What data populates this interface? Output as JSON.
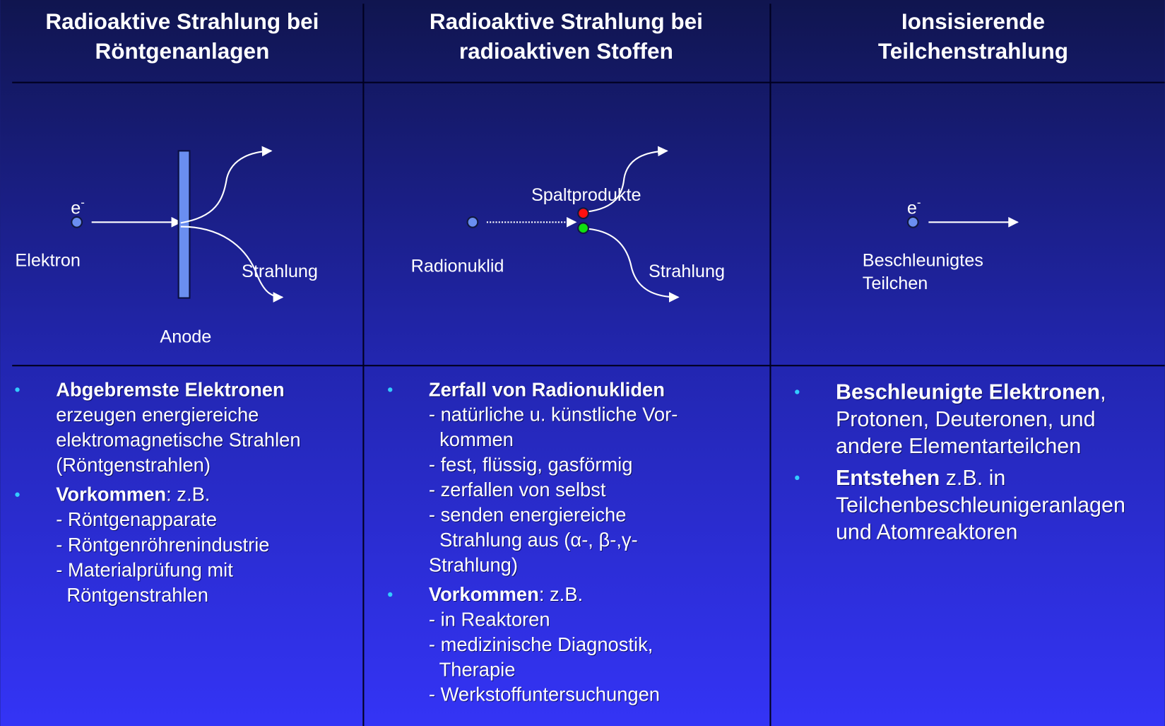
{
  "columns": [
    {
      "title": [
        "Radioaktive Strahlung bei",
        "Röntgenanlagen"
      ],
      "diagram": {
        "electron_symbol": "e",
        "charge": "-",
        "source": "Elektron",
        "target": "Anode",
        "output": "Strahlung"
      },
      "bullets": [
        {
          "lead": "Abgebremste Elektronen",
          "rest": "",
          "lines": [
            "erzeugen energiereiche",
            "elektromagnetische Strahlen",
            "(Röntgenstrahlen)"
          ]
        },
        {
          "lead": "Vorkommen",
          "rest": ": z.B.",
          "lines": [
            "- Röntgenapparate",
            "- Röntgenröhrenindustrie",
            "- Materialprüfung mit",
            "  Röntgenstrahlen"
          ]
        }
      ]
    },
    {
      "title": [
        "Radioaktive Strahlung bei",
        "radioaktiven Stoffen"
      ],
      "diagram": {
        "source": "Radionuklid",
        "products": "Spaltprodukte",
        "output": "Strahlung"
      },
      "bullets": [
        {
          "lead": "Zerfall von Radionukliden",
          "rest": "",
          "lines": [
            "- natürliche u. künstliche Vor-",
            "  kommen",
            "- fest, flüssig, gasförmig",
            "- zerfallen von selbst",
            "- senden energiereiche",
            "  Strahlung aus (α-, β-,γ-",
            "Strahlung)"
          ]
        },
        {
          "lead": "Vorkommen",
          "rest": ": z.B.",
          "lines": [
            "- in Reaktoren",
            "- medizinische Diagnostik,",
            "  Therapie",
            "- Werkstoffuntersuchungen"
          ]
        }
      ]
    },
    {
      "title": [
        "Ionsisierende",
        "Teilchenstrahlung"
      ],
      "diagram": {
        "electron_symbol": "e",
        "charge": "-",
        "source": [
          "Beschleunigtes",
          "Teilchen"
        ]
      },
      "bullets": [
        {
          "lead": "Beschleunigte Elektronen",
          "rest": ",",
          "lines": [
            "Protonen, Deuteronen, und",
            "andere Elementarteilchen"
          ]
        },
        {
          "lead": "Entstehen",
          "rest": " z.B. in",
          "lines": [
            "Teilchenbeschleunigeranlagen",
            "und Atomreaktoren"
          ]
        }
      ]
    }
  ]
}
